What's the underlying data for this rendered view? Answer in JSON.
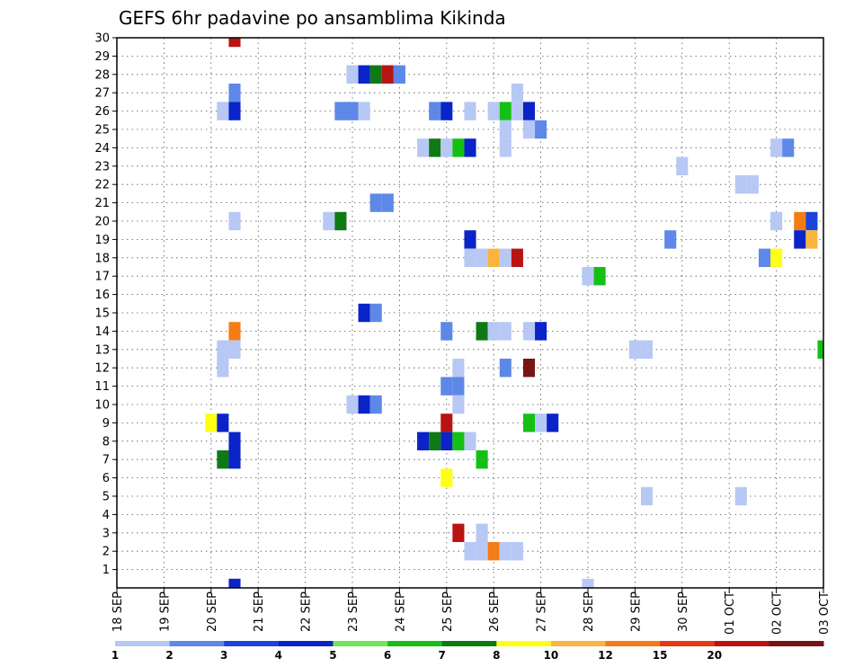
{
  "chart_data": {
    "type": "heatmap",
    "title": "GEFS 6hr padavine po ansamblima Kikinda",
    "x_tick_labels": [
      "18 SEP",
      "19 SEP",
      "20 SEP",
      "21 SEP",
      "22 SEP",
      "23 SEP",
      "24 SEP",
      "25 SEP",
      "26 SEP",
      "27 SEP",
      "28 SEP",
      "29 SEP",
      "30 SEP",
      "01 OCT",
      "02 OCT",
      "03 OCT"
    ],
    "y_tick_labels": [
      "1",
      "2",
      "3",
      "4",
      "5",
      "6",
      "7",
      "8",
      "9",
      "10",
      "11",
      "12",
      "13",
      "14",
      "15",
      "16",
      "17",
      "18",
      "19",
      "20",
      "21",
      "22",
      "23",
      "24",
      "25",
      "26",
      "27",
      "28",
      "29",
      "30"
    ],
    "ylim": [
      0,
      30
    ],
    "xlim_days": [
      0,
      15
    ],
    "grid": "dotted",
    "colorbar": {
      "labels": [
        "1",
        "2",
        "3",
        "4",
        "5",
        "6",
        "7",
        "8",
        "10",
        "12",
        "15",
        "20"
      ],
      "colors": [
        "#b8c8f5",
        "#5e88e8",
        "#1c44d8",
        "#0a24c8",
        "#6ee858",
        "#14c014",
        "#0e7a14",
        "#ffff14",
        "#fbb43c",
        "#f47c14",
        "#e43814",
        "#b81414",
        "#781414"
      ]
    },
    "cells_note": "[member, day_from_18_SEP, class]; class index into colorbar.colors",
    "cells": [
      [
        30,
        2.5,
        11
      ],
      [
        28,
        5.0,
        0
      ],
      [
        28,
        5.25,
        3
      ],
      [
        28,
        5.5,
        6
      ],
      [
        28,
        5.75,
        11
      ],
      [
        28,
        6.0,
        1
      ],
      [
        27,
        2.5,
        1
      ],
      [
        27,
        8.5,
        0
      ],
      [
        26,
        2.25,
        0
      ],
      [
        26,
        2.5,
        3
      ],
      [
        26,
        4.75,
        1
      ],
      [
        26,
        5.0,
        1
      ],
      [
        26,
        5.25,
        0
      ],
      [
        26,
        6.75,
        1
      ],
      [
        26,
        7.0,
        3
      ],
      [
        26,
        7.5,
        0
      ],
      [
        26,
        8.0,
        0
      ],
      [
        26,
        8.25,
        5
      ],
      [
        26,
        8.5,
        0
      ],
      [
        26,
        8.75,
        3
      ],
      [
        25,
        8.25,
        0
      ],
      [
        25,
        8.75,
        0
      ],
      [
        25,
        9.0,
        1
      ],
      [
        24,
        6.5,
        0
      ],
      [
        24,
        6.75,
        6
      ],
      [
        24,
        7.0,
        0
      ],
      [
        24,
        7.25,
        5
      ],
      [
        24,
        7.5,
        3
      ],
      [
        24,
        8.25,
        0
      ],
      [
        24,
        14.0,
        0
      ],
      [
        24,
        14.25,
        1
      ],
      [
        23,
        12.0,
        0
      ],
      [
        22,
        13.25,
        0
      ],
      [
        22,
        13.5,
        0
      ],
      [
        21,
        5.5,
        1
      ],
      [
        21,
        5.75,
        1
      ],
      [
        20,
        2.5,
        0
      ],
      [
        20,
        4.5,
        0
      ],
      [
        20,
        4.75,
        6
      ],
      [
        20,
        14.0,
        0
      ],
      [
        20,
        14.5,
        9
      ],
      [
        20,
        14.75,
        2
      ],
      [
        19,
        7.5,
        3
      ],
      [
        19,
        11.75,
        1
      ],
      [
        19,
        14.5,
        3
      ],
      [
        19,
        14.75,
        8
      ],
      [
        18,
        7.5,
        0
      ],
      [
        18,
        7.75,
        0
      ],
      [
        18,
        8.0,
        8
      ],
      [
        18,
        8.25,
        0
      ],
      [
        18,
        8.5,
        11
      ],
      [
        18,
        13.75,
        1
      ],
      [
        18,
        14.0,
        7
      ],
      [
        17,
        10.0,
        0
      ],
      [
        17,
        10.25,
        5
      ],
      [
        15,
        5.25,
        3
      ],
      [
        15,
        5.5,
        1
      ],
      [
        14,
        2.5,
        9
      ],
      [
        14,
        7.0,
        1
      ],
      [
        14,
        7.75,
        6
      ],
      [
        14,
        8.0,
        0
      ],
      [
        14,
        8.25,
        0
      ],
      [
        14,
        8.75,
        0
      ],
      [
        14,
        9.0,
        3
      ],
      [
        13,
        2.25,
        0
      ],
      [
        13,
        2.5,
        0
      ],
      [
        13,
        11.0,
        0
      ],
      [
        13,
        11.25,
        0
      ],
      [
        13,
        15.0,
        5
      ],
      [
        12,
        2.25,
        0
      ],
      [
        12,
        7.25,
        0
      ],
      [
        12,
        8.25,
        1
      ],
      [
        12,
        8.75,
        12
      ],
      [
        11,
        7.0,
        1
      ],
      [
        11,
        7.25,
        1
      ],
      [
        10,
        5.0,
        0
      ],
      [
        10,
        5.25,
        3
      ],
      [
        10,
        5.5,
        1
      ],
      [
        10,
        7.25,
        0
      ],
      [
        9,
        2.0,
        7
      ],
      [
        9,
        2.25,
        3
      ],
      [
        9,
        7.0,
        11
      ],
      [
        9,
        8.75,
        5
      ],
      [
        9,
        9.0,
        0
      ],
      [
        9,
        9.25,
        3
      ],
      [
        8,
        2.5,
        3
      ],
      [
        8,
        6.5,
        3
      ],
      [
        8,
        6.75,
        6
      ],
      [
        8,
        7.0,
        3
      ],
      [
        8,
        7.25,
        5
      ],
      [
        8,
        7.5,
        0
      ],
      [
        7,
        2.25,
        6
      ],
      [
        7,
        2.5,
        3
      ],
      [
        7,
        7.75,
        5
      ],
      [
        6,
        7.0,
        7
      ],
      [
        5,
        11.25,
        0
      ],
      [
        5,
        13.25,
        0
      ],
      [
        3,
        7.25,
        11
      ],
      [
        3,
        7.75,
        0
      ],
      [
        2,
        7.5,
        0
      ],
      [
        2,
        7.75,
        0
      ],
      [
        2,
        8.0,
        9
      ],
      [
        2,
        8.25,
        0
      ],
      [
        2,
        8.5,
        0
      ],
      [
        0,
        2.5,
        3
      ],
      [
        0,
        10.0,
        0
      ]
    ]
  }
}
